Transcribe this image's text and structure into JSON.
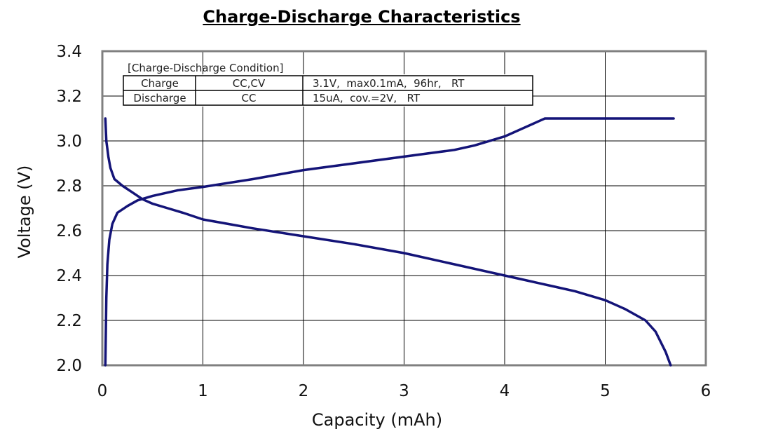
{
  "chart_data": {
    "type": "line",
    "title": "Charge-Discharge Characteristics",
    "xlabel": "Capacity (mAh)",
    "ylabel": "Voltage (V)",
    "xlim": [
      0,
      6
    ],
    "ylim": [
      2.0,
      3.4
    ],
    "x_ticks": [
      "0",
      "1",
      "2",
      "3",
      "4",
      "5",
      "6"
    ],
    "y_ticks": [
      "2.0",
      "2.2",
      "2.4",
      "2.6",
      "2.8",
      "3.0",
      "3.2",
      "3.4"
    ],
    "grid": true,
    "line_color": "#141478",
    "series": [
      {
        "name": "Charge",
        "x": [
          0.03,
          0.04,
          0.05,
          0.07,
          0.1,
          0.15,
          0.25,
          0.35,
          0.5,
          0.75,
          1.0,
          1.5,
          2.0,
          2.5,
          3.0,
          3.5,
          3.7,
          4.0,
          4.2,
          4.35,
          4.4,
          4.5,
          5.0,
          5.5,
          5.68
        ],
        "y": [
          2.0,
          2.3,
          2.45,
          2.56,
          2.63,
          2.68,
          2.71,
          2.735,
          2.755,
          2.78,
          2.795,
          2.83,
          2.87,
          2.9,
          2.93,
          2.96,
          2.98,
          3.02,
          3.06,
          3.09,
          3.1,
          3.1,
          3.1,
          3.1,
          3.1
        ]
      },
      {
        "name": "Discharge",
        "x": [
          0.03,
          0.04,
          0.06,
          0.08,
          0.12,
          0.2,
          0.3,
          0.4,
          0.5,
          0.65,
          0.8,
          1.0,
          1.25,
          1.5,
          2.0,
          2.5,
          3.0,
          3.5,
          4.0,
          4.5,
          4.7,
          5.0,
          5.2,
          5.4,
          5.5,
          5.6,
          5.65
        ],
        "y": [
          3.1,
          3.0,
          2.93,
          2.88,
          2.83,
          2.8,
          2.77,
          2.74,
          2.72,
          2.7,
          2.68,
          2.65,
          2.63,
          2.61,
          2.575,
          2.54,
          2.5,
          2.45,
          2.4,
          2.35,
          2.33,
          2.29,
          2.25,
          2.2,
          2.15,
          2.06,
          2.0
        ]
      }
    ]
  },
  "condition_table": {
    "caption": "[Charge-Discharge Condition]",
    "rows": [
      {
        "mode": "Charge",
        "method": "CC,CV",
        "detail": "3.1V,  max0.1mA,  96hr,   RT"
      },
      {
        "mode": "Discharge",
        "method": "CC",
        "detail": "15uA,  cov.=2V,   RT"
      }
    ]
  }
}
